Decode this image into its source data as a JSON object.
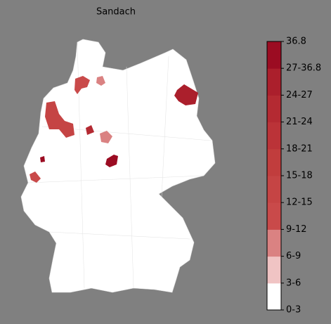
{
  "title": "Sandach",
  "legend": {
    "ticks": [
      "0-3",
      "3-6",
      "6-9",
      "9-12",
      "12-15",
      "15-18",
      "18-21",
      "21-24",
      "24-27",
      "27-36.8",
      "36.8"
    ],
    "colors": [
      "#ffffff",
      "#f0c4c4",
      "#da8282",
      "#c94a4a",
      "#c54444",
      "#c13d3d",
      "#bb3338",
      "#b42a32",
      "#ab1f2c",
      "#9b0c22"
    ]
  }
}
